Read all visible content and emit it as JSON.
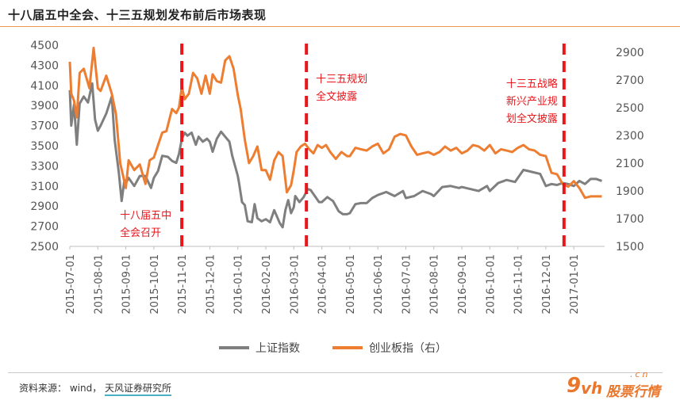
{
  "title": "十八届五中全会、十三五规划发布前后市场表现",
  "source": {
    "label": "资料来源：",
    "text": "wind，",
    "org": "天风证券研究所"
  },
  "watermark": {
    "nine": "9",
    "vh": "vh",
    "cn": ".cn",
    "text": "股票行情"
  },
  "colors": {
    "sse": "#7f7f7f",
    "gem": "#ed7d31",
    "marker": "#e8161b",
    "annotation": "#e8161b"
  },
  "chart_data": {
    "type": "line",
    "x_tick_labels": [
      "2015-07-01",
      "2015-08-01",
      "2015-09-01",
      "2015-10-01",
      "2015-11-01",
      "2015-12-01",
      "2016-01-01",
      "2016-02-01",
      "2016-03-01",
      "2016-04-01",
      "2016-05-01",
      "2016-06-01",
      "2016-07-01",
      "2016-08-01",
      "2016-09-01",
      "2016-10-01",
      "2016-11-01",
      "2016-12-01",
      "2017-01-01"
    ],
    "x_range_month": [
      0,
      19.1
    ],
    "y_left": {
      "ticks": [
        2500,
        2700,
        2900,
        3100,
        3300,
        3500,
        3700,
        3900,
        4100,
        4300,
        4500
      ],
      "range": [
        2500,
        4500
      ]
    },
    "y_right": {
      "ticks": [
        1500,
        1700,
        1900,
        2100,
        2300,
        2500,
        2700,
        2900
      ],
      "range": [
        1500,
        2950
      ]
    },
    "legend_position": "bottom",
    "series": [
      {
        "name": "上证指数",
        "axis": "left",
        "x": [
          0.0,
          0.05,
          0.15,
          0.25,
          0.35,
          0.5,
          0.65,
          0.8,
          0.9,
          1.0,
          1.1,
          1.3,
          1.5,
          1.6,
          1.75,
          1.85,
          1.95,
          2.0,
          2.1,
          2.3,
          2.5,
          2.7,
          2.9,
          3.0,
          3.15,
          3.3,
          3.5,
          3.65,
          3.8,
          3.9,
          4.0,
          4.1,
          4.2,
          4.35,
          4.5,
          4.6,
          4.75,
          4.9,
          5.0,
          5.1,
          5.25,
          5.4,
          5.55,
          5.7,
          5.8,
          5.9,
          6.0,
          6.05,
          6.15,
          6.25,
          6.35,
          6.5,
          6.6,
          6.7,
          6.85,
          7.0,
          7.15,
          7.3,
          7.5,
          7.6,
          7.7,
          7.8,
          7.9,
          8.0,
          8.05,
          8.2,
          8.35,
          8.5,
          8.6,
          8.75,
          8.9,
          9.0,
          9.2,
          9.4,
          9.6,
          9.75,
          9.9,
          10.0,
          10.2,
          10.4,
          10.6,
          10.8,
          11.0,
          11.3,
          11.6,
          11.9,
          12.0,
          12.3,
          12.6,
          12.9,
          13.0,
          13.3,
          13.6,
          13.9,
          14.0,
          14.3,
          14.6,
          14.9,
          15.0,
          15.3,
          15.6,
          15.9,
          16.0,
          16.2,
          16.5,
          16.8,
          17.0,
          17.2,
          17.4,
          17.6,
          17.8,
          18.0,
          18.2,
          18.4,
          18.6,
          18.8,
          19.0
        ],
        "values": [
          4053,
          3700,
          3910,
          3510,
          3920,
          3990,
          3930,
          4120,
          3760,
          3650,
          3700,
          3820,
          3990,
          3560,
          3230,
          2950,
          3160,
          3130,
          3180,
          3100,
          3200,
          3200,
          3080,
          3180,
          3250,
          3400,
          3390,
          3350,
          3330,
          3420,
          3570,
          3630,
          3600,
          3630,
          3510,
          3590,
          3540,
          3570,
          3540,
          3440,
          3570,
          3640,
          3590,
          3540,
          3400,
          3300,
          3200,
          3120,
          2940,
          2910,
          2750,
          2740,
          2920,
          2780,
          2750,
          2770,
          2740,
          2860,
          2730,
          2690,
          2860,
          2960,
          2830,
          2890,
          3000,
          2940,
          2990,
          3070,
          3060,
          3000,
          2940,
          2940,
          2990,
          2950,
          2850,
          2820,
          2820,
          2830,
          2920,
          2930,
          2930,
          2980,
          3010,
          3040,
          3000,
          3050,
          2980,
          3000,
          3050,
          3020,
          3000,
          3090,
          3100,
          3080,
          3090,
          3070,
          3050,
          3100,
          3050,
          3130,
          3160,
          3140,
          3180,
          3260,
          3240,
          3220,
          3100,
          3120,
          3110,
          3130,
          3120,
          3100,
          3150,
          3120,
          3170,
          3170,
          3150
        ]
      },
      {
        "name": "创业板指（右）",
        "axis": "right",
        "x": [
          0.0,
          0.05,
          0.15,
          0.25,
          0.35,
          0.5,
          0.7,
          0.85,
          1.0,
          1.1,
          1.3,
          1.5,
          1.65,
          1.8,
          2.0,
          2.1,
          2.3,
          2.5,
          2.7,
          2.85,
          3.0,
          3.15,
          3.3,
          3.45,
          3.65,
          3.8,
          3.9,
          4.0,
          4.1,
          4.25,
          4.4,
          4.55,
          4.7,
          4.85,
          5.0,
          5.1,
          5.25,
          5.4,
          5.55,
          5.7,
          5.85,
          6.0,
          6.1,
          6.25,
          6.4,
          6.55,
          6.7,
          6.85,
          7.0,
          7.15,
          7.3,
          7.45,
          7.6,
          7.75,
          7.9,
          8.0,
          8.1,
          8.25,
          8.4,
          8.55,
          8.7,
          8.85,
          9.0,
          9.15,
          9.3,
          9.5,
          9.7,
          9.9,
          10.0,
          10.2,
          10.4,
          10.6,
          10.8,
          11.0,
          11.2,
          11.4,
          11.6,
          11.8,
          12.0,
          12.2,
          12.4,
          12.6,
          12.8,
          13.0,
          13.2,
          13.4,
          13.6,
          13.8,
          14.0,
          14.2,
          14.4,
          14.6,
          14.8,
          15.0,
          15.2,
          15.4,
          15.6,
          15.8,
          16.0,
          16.2,
          16.4,
          16.6,
          16.8,
          17.0,
          17.2,
          17.4,
          17.6,
          17.8,
          18.0,
          18.2,
          18.4,
          18.6,
          18.8,
          19.0
        ],
        "values": [
          2830,
          2600,
          2550,
          2430,
          2750,
          2780,
          2640,
          2930,
          2640,
          2620,
          2730,
          2600,
          2450,
          2100,
          1920,
          2120,
          2050,
          2090,
          1950,
          2120,
          2140,
          2230,
          2320,
          2330,
          2490,
          2460,
          2500,
          2650,
          2560,
          2600,
          2750,
          2710,
          2600,
          2730,
          2600,
          2740,
          2690,
          2680,
          2840,
          2870,
          2780,
          2590,
          2490,
          2270,
          2100,
          2150,
          2220,
          2050,
          2050,
          1980,
          2120,
          2180,
          2150,
          1890,
          1940,
          2050,
          2180,
          2220,
          2240,
          2200,
          2170,
          2230,
          2210,
          2230,
          2180,
          2130,
          2180,
          2150,
          2150,
          2210,
          2200,
          2190,
          2220,
          2240,
          2170,
          2200,
          2290,
          2310,
          2300,
          2220,
          2160,
          2170,
          2180,
          2160,
          2180,
          2220,
          2190,
          2210,
          2170,
          2190,
          2230,
          2220,
          2190,
          2230,
          2170,
          2200,
          2190,
          2180,
          2210,
          2230,
          2200,
          2190,
          2160,
          2150,
          2030,
          2020,
          1950,
          1930,
          1970,
          1920,
          1850,
          1860,
          1860,
          1860
        ]
      }
    ],
    "markers": [
      {
        "x": 4.0,
        "label_lines": [
          "十八届五中",
          "全会召开"
        ],
        "label_pos": "bottom-left"
      },
      {
        "x": 8.45,
        "label_lines": [
          "十三五规划",
          "全文披露"
        ],
        "label_pos": "top-right"
      },
      {
        "x": 17.65,
        "label_lines": [
          "十三五战略",
          "新兴产业规",
          "划全文披露"
        ],
        "label_pos": "top-left"
      }
    ]
  }
}
